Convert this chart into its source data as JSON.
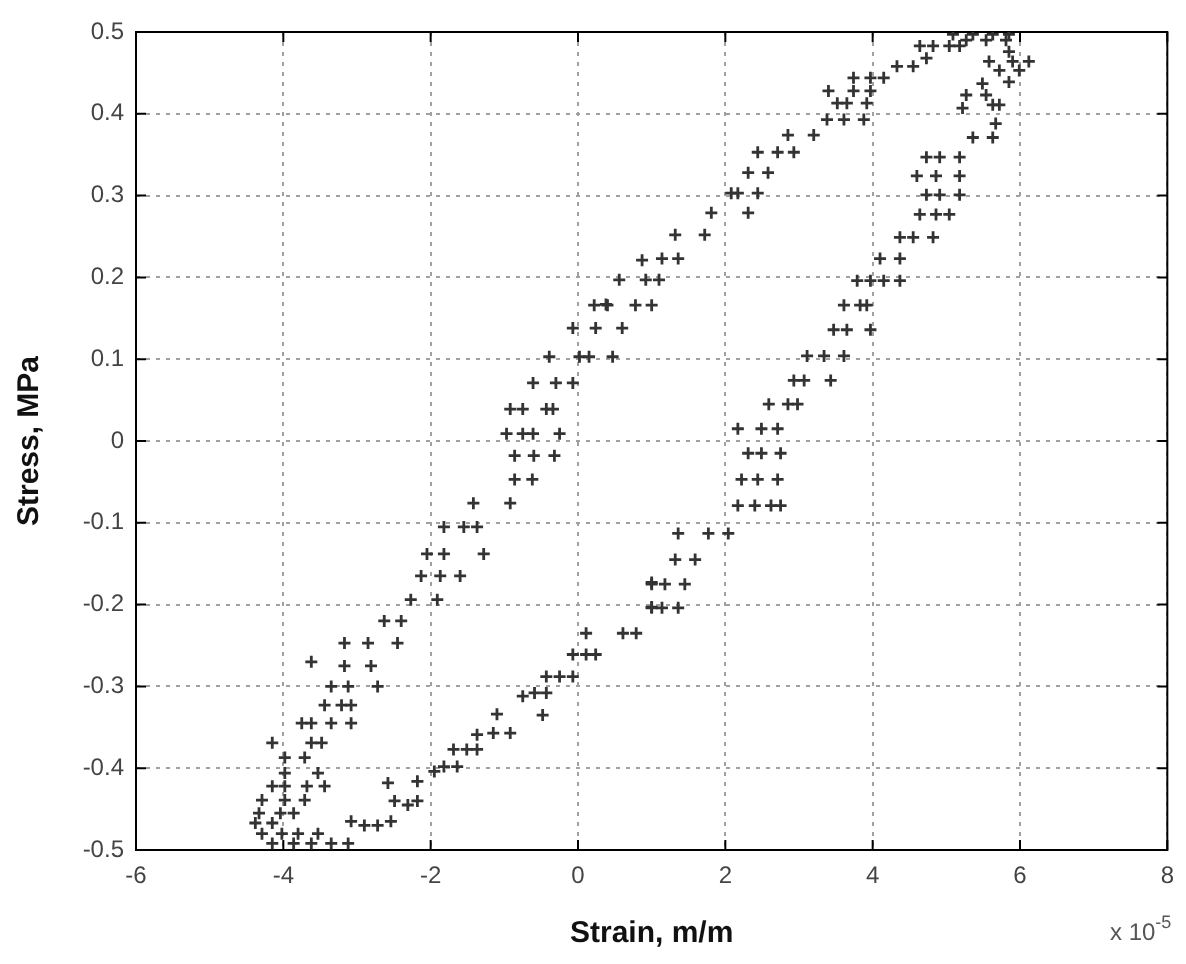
{
  "chart_data": {
    "type": "scatter",
    "xlabel": "Strain, m/m",
    "ylabel": "Stress, MPa",
    "annotations": [
      "x 10$^{-5}$"
    ],
    "xlim": [
      -6,
      8
    ],
    "xticks": [
      -6,
      -4,
      -2,
      0,
      2,
      4,
      6,
      8
    ],
    "ylim": [
      -0.5,
      0.5
    ],
    "yticks": [
      -0.5,
      -0.4,
      -0.3,
      -0.2,
      -0.1,
      0,
      0.1,
      0.2,
      0.3,
      0.4,
      0.5
    ],
    "grid": true,
    "legend": false,
    "marker": "cross",
    "series": [
      {
        "color": "#333333",
        "x": [
          -0.86,
          -0.6,
          -0.32,
          -0.86,
          -0.62,
          -1.42,
          -0.92,
          -1.82,
          -1.55,
          -1.37,
          -2.05,
          -1.82,
          -1.28,
          -2.13,
          -1.87,
          -1.6,
          -2.27,
          -1.91,
          -2.63,
          -2.4,
          -2.45,
          -3.17,
          -2.85,
          -3.17,
          -2.81,
          -3.62,
          -3.35,
          -3.12,
          -2.72,
          -3.44,
          -3.21,
          -3.08,
          -3.75,
          -3.62,
          -3.35,
          -3.08,
          -4.15,
          -3.62,
          -3.48,
          -3.98,
          -3.71,
          -3.98,
          -3.53,
          -4.15,
          -3.98,
          -3.68,
          -3.44,
          -4.29,
          -3.98,
          -3.71,
          -4.33,
          -4.04,
          -3.86,
          -4.38,
          -4.15,
          -4.29,
          -4.02,
          -3.8,
          -3.53,
          -4.15,
          -3.86,
          -3.62,
          -3.35,
          -3.12,
          -3.08,
          -2.9,
          -2.72,
          -2.54,
          -2.58,
          -2.49,
          -2.31,
          -2.18,
          -2.18,
          -1.95,
          -1.82,
          -1.64,
          -1.69,
          -1.51,
          -1.37,
          -1.37,
          -1.15,
          -0.92,
          -1.1,
          -0.75,
          -0.48,
          -0.59,
          -0.43,
          -0.43,
          -0.25,
          -0.07,
          -0.07,
          0.11,
          0.24,
          0.11,
          0.61,
          0.79,
          1.0,
          1.0,
          1.0,
          1.14,
          1.36,
          1.0,
          1.18,
          1.45,
          1.32,
          1.59,
          1.36,
          1.77,
          2.04,
          2.17,
          2.4,
          2.62,
          2.75,
          2.22,
          2.44,
          2.71,
          2.31,
          2.49,
          2.75,
          -0.97,
          -0.75,
          -0.61,
          -0.25,
          -0.92,
          -0.75,
          -0.43,
          -0.34,
          -0.61,
          -0.3,
          -0.07,
          -0.39,
          0.02,
          0.15,
          0.47,
          -0.07,
          0.24,
          0.6,
          0.22,
          0.4,
          0.78,
          1.0,
          0.56,
          0.92,
          0.87,
          0.38,
          1.1,
          1.14,
          1.36,
          1.32,
          1.72,
          1.81,
          2.31,
          2.08,
          2.17,
          2.44,
          2.31,
          2.58,
          2.44,
          2.71,
          2.93,
          2.85,
          3.2,
          3.38,
          3.61,
          3.88,
          3.52,
          3.65,
          3.92,
          3.4,
          3.74,
          3.97,
          3.74,
          3.97,
          4.15,
          4.33,
          4.55,
          4.64,
          4.82,
          5.04,
          5.18,
          4.73,
          5.09,
          5.36,
          5.63,
          5.85,
          5.27,
          5.54,
          5.81,
          5.58,
          5.9,
          6.12,
          5.85,
          5.72,
          5.99,
          5.85,
          5.49,
          5.54,
          5.27,
          5.22,
          5.63,
          5.72,
          5.67,
          5.36,
          5.63,
          4.73,
          4.91,
          5.18,
          4.6,
          4.86,
          5.18,
          4.73,
          4.91,
          5.18,
          4.64,
          4.86,
          5.04,
          4.37,
          4.55,
          4.82,
          4.1,
          4.37,
          3.79,
          3.97,
          4.15,
          4.37,
          3.61,
          3.83,
          3.92,
          3.47,
          3.65,
          3.97,
          3.11,
          3.34,
          3.61,
          2.93,
          3.07,
          3.43,
          2.59,
          2.85,
          2.98,
          2.17,
          2.49,
          2.71
        ],
        "values": [
          -0.018,
          -0.018,
          -0.018,
          -0.047,
          -0.047,
          -0.076,
          -0.076,
          -0.105,
          -0.105,
          -0.105,
          -0.138,
          -0.138,
          -0.138,
          -0.165,
          -0.165,
          -0.165,
          -0.194,
          -0.194,
          -0.22,
          -0.22,
          -0.247,
          -0.247,
          -0.247,
          -0.275,
          -0.275,
          -0.27,
          -0.3,
          -0.3,
          -0.3,
          -0.323,
          -0.323,
          -0.323,
          -0.345,
          -0.345,
          -0.345,
          -0.345,
          -0.369,
          -0.369,
          -0.369,
          -0.387,
          -0.387,
          -0.406,
          -0.406,
          -0.422,
          -0.422,
          -0.422,
          -0.422,
          -0.439,
          -0.439,
          -0.439,
          -0.455,
          -0.455,
          -0.455,
          -0.467,
          -0.467,
          -0.48,
          -0.48,
          -0.48,
          -0.48,
          -0.492,
          -0.492,
          -0.492,
          -0.492,
          -0.492,
          -0.465,
          -0.47,
          -0.47,
          -0.465,
          -0.418,
          -0.44,
          -0.445,
          -0.44,
          -0.416,
          -0.404,
          -0.398,
          -0.398,
          -0.377,
          -0.377,
          -0.377,
          -0.359,
          -0.357,
          -0.357,
          -0.334,
          -0.312,
          -0.335,
          -0.308,
          -0.308,
          -0.288,
          -0.288,
          -0.288,
          -0.261,
          -0.261,
          -0.261,
          -0.235,
          -0.235,
          -0.235,
          -0.203,
          -0.173,
          -0.204,
          -0.204,
          -0.204,
          -0.175,
          -0.175,
          -0.175,
          -0.145,
          -0.145,
          -0.113,
          -0.113,
          -0.113,
          -0.079,
          -0.079,
          -0.079,
          -0.079,
          -0.047,
          -0.047,
          -0.047,
          -0.015,
          -0.015,
          -0.015,
          0.009,
          0.009,
          0.009,
          0.009,
          0.039,
          0.039,
          0.039,
          0.039,
          0.071,
          0.071,
          0.071,
          0.103,
          0.103,
          0.103,
          0.103,
          0.138,
          0.138,
          0.138,
          0.166,
          0.166,
          0.166,
          0.166,
          0.197,
          0.197,
          0.221,
          0.167,
          0.197,
          0.223,
          0.223,
          0.252,
          0.252,
          0.279,
          0.279,
          0.303,
          0.303,
          0.303,
          0.328,
          0.328,
          0.353,
          0.353,
          0.353,
          0.374,
          0.374,
          0.393,
          0.393,
          0.393,
          0.413,
          0.413,
          0.413,
          0.428,
          0.428,
          0.428,
          0.444,
          0.444,
          0.444,
          0.458,
          0.458,
          0.483,
          0.483,
          0.483,
          0.483,
          0.468,
          0.497,
          0.497,
          0.497,
          0.497,
          0.49,
          0.49,
          0.49,
          0.464,
          0.464,
          0.464,
          0.476,
          0.453,
          0.453,
          0.439,
          0.437,
          0.423,
          0.423,
          0.407,
          0.411,
          0.411,
          0.388,
          0.371,
          0.371,
          0.347,
          0.347,
          0.347,
          0.324,
          0.324,
          0.324,
          0.301,
          0.301,
          0.301,
          0.277,
          0.277,
          0.277,
          0.249,
          0.249,
          0.249,
          0.223,
          0.223,
          0.196,
          0.196,
          0.196,
          0.196,
          0.166,
          0.166,
          0.166,
          0.136,
          0.136,
          0.136,
          0.104,
          0.104,
          0.104,
          0.074,
          0.074,
          0.074,
          0.045,
          0.045,
          0.045,
          0.015,
          0.015,
          0.015
        ]
      }
    ]
  }
}
